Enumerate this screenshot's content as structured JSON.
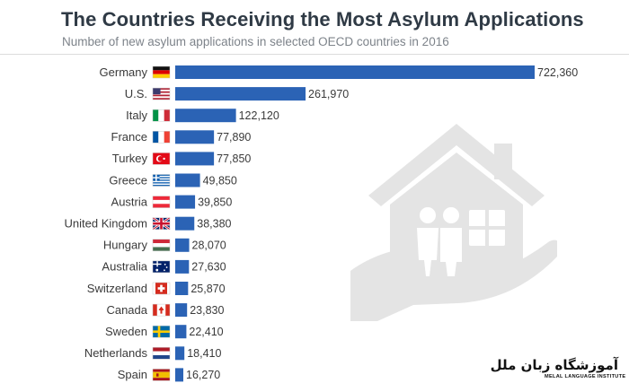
{
  "chart_data": {
    "type": "bar",
    "orientation": "horizontal",
    "title": "The Countries Receiving the Most Asylum Applications",
    "subtitle": "Number of new asylum applications in selected OECD countries in 2016",
    "categories": [
      "Germany",
      "U.S.",
      "Italy",
      "France",
      "Turkey",
      "Greece",
      "Austria",
      "United Kingdom",
      "Hungary",
      "Australia",
      "Switzerland",
      "Canada",
      "Sweden",
      "Netherlands",
      "Spain"
    ],
    "values": [
      722360,
      261970,
      122120,
      77890,
      77850,
      49850,
      39850,
      38380,
      28070,
      27630,
      25870,
      23830,
      22410,
      18410,
      16270
    ],
    "value_labels": [
      "722,360",
      "261,970",
      "122,120",
      "77,890",
      "77,850",
      "49,850",
      "39,850",
      "38,380",
      "28,070",
      "27,630",
      "25,870",
      "23,830",
      "22,410",
      "18,410",
      "16,270"
    ],
    "flags": [
      "germany",
      "usa",
      "italy",
      "france",
      "turkey",
      "greece",
      "austria",
      "uk",
      "hungary",
      "australia",
      "switzerland",
      "canada",
      "sweden",
      "netherlands",
      "spain"
    ],
    "xlim": [
      0,
      722360
    ],
    "bar_color": "#2b63b5",
    "grid": false,
    "legend": "none"
  },
  "logo": {
    "name_fa": "آموزشگاه زبان ملل",
    "name_en": "MELAL LANGUAGE INSTITUTE"
  }
}
